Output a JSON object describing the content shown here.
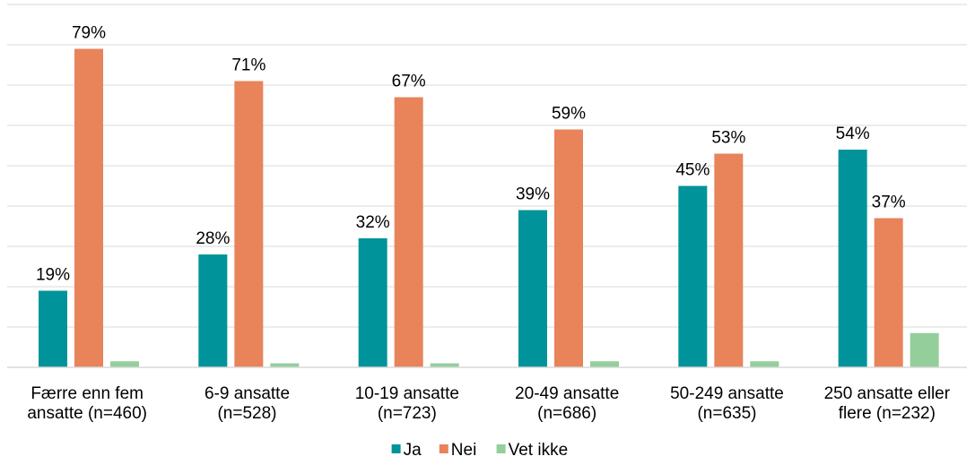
{
  "chart_data": {
    "type": "bar",
    "categories": [
      [
        "Færre enn fem",
        "ansatte (n=460)"
      ],
      [
        "6-9 ansatte",
        "(n=528)"
      ],
      [
        "10-19 ansatte",
        "(n=723)"
      ],
      [
        "20-49 ansatte",
        "(n=686)"
      ],
      [
        "50-249 ansatte",
        "(n=635)"
      ],
      [
        "250 ansatte eller",
        "flere (n=232)"
      ]
    ],
    "series": [
      {
        "name": "Ja",
        "color": "#00939a",
        "values": [
          19,
          28,
          32,
          39,
          45,
          54
        ],
        "labels": [
          "19%",
          "28%",
          "32%",
          "39%",
          "45%",
          "54%"
        ]
      },
      {
        "name": "Nei",
        "color": "#e8835a",
        "values": [
          79,
          71,
          67,
          59,
          53,
          37
        ],
        "labels": [
          "79%",
          "71%",
          "67%",
          "59%",
          "53%",
          "37%"
        ]
      },
      {
        "name": "Vet ikke",
        "color": "#94ce9a",
        "values": [
          1.5,
          1,
          1,
          1.5,
          1.5,
          8.5
        ],
        "labels": [
          "",
          "",
          "",
          "",
          "",
          ""
        ]
      }
    ],
    "ylim": [
      0,
      90
    ],
    "grid": true,
    "legend": "bottom",
    "title": "",
    "xlabel": "",
    "ylabel": ""
  }
}
